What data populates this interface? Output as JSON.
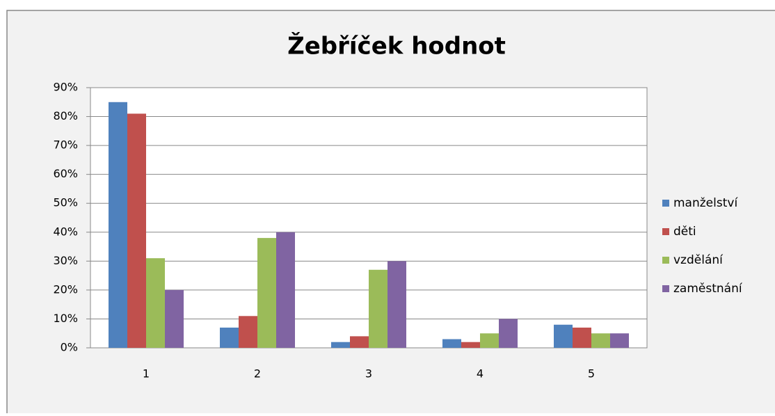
{
  "chart_data": {
    "type": "bar",
    "title": "Žebříček hodnot",
    "categories": [
      "1",
      "2",
      "3",
      "4",
      "5"
    ],
    "series": [
      {
        "name": "manželství",
        "color": "#4f81bd",
        "values": [
          85,
          7,
          2,
          3,
          8
        ]
      },
      {
        "name": "děti",
        "color": "#c0504d",
        "values": [
          81,
          11,
          4,
          2,
          7
        ]
      },
      {
        "name": "vzdělání",
        "color": "#9bbb59",
        "values": [
          31,
          38,
          27,
          5,
          5
        ]
      },
      {
        "name": "zaměstnání",
        "color": "#8064a2",
        "values": [
          20,
          40,
          30,
          10,
          5
        ]
      }
    ],
    "ylim": [
      0,
      90
    ],
    "yticks": [
      {
        "value": 0,
        "label": "0%"
      },
      {
        "value": 10,
        "label": "10%"
      },
      {
        "value": 20,
        "label": "20%"
      },
      {
        "value": 30,
        "label": "30%"
      },
      {
        "value": 40,
        "label": "40%"
      },
      {
        "value": 50,
        "label": "50%"
      },
      {
        "value": 60,
        "label": "60%"
      },
      {
        "value": 70,
        "label": "70%"
      },
      {
        "value": 80,
        "label": "80%"
      },
      {
        "value": 90,
        "label": "90%"
      }
    ],
    "grid": true,
    "legend": "right"
  }
}
